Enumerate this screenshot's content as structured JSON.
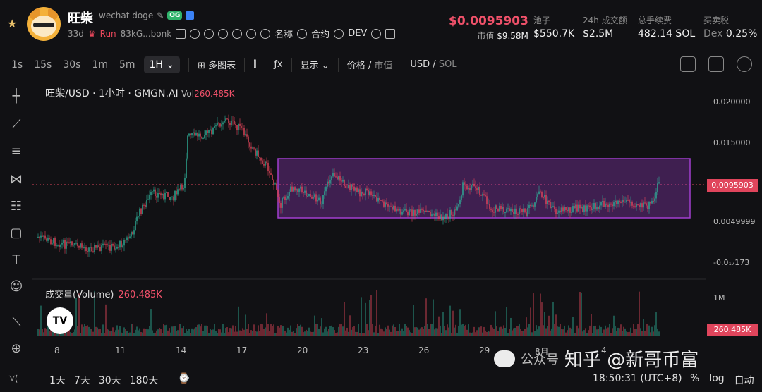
{
  "token": {
    "name": "旺柴",
    "subtitle": "wechat doge",
    "badge": "OG",
    "age": "33d",
    "status": "Run",
    "address": "83kG...bonk"
  },
  "links": [
    "名称",
    "合约",
    "DEV"
  ],
  "price": {
    "value": "$0.0095903",
    "mcap_label": "市值",
    "mcap": "$9.58M"
  },
  "stats": [
    {
      "label": "池子",
      "value": "$550.7K"
    },
    {
      "label": "24h 成交额",
      "value": "$2.5M"
    },
    {
      "label": "总手续费",
      "value": "482.14 SOL"
    },
    {
      "label": "买卖税",
      "value": "Dex",
      "extra": "0.25%"
    }
  ],
  "toolbar": {
    "intervals": [
      "1s",
      "15s",
      "30s",
      "1m",
      "5m"
    ],
    "selected": "1H",
    "multi": "多图表",
    "display": "显示",
    "price": "价格",
    "mcap": "市值",
    "usd": "USD",
    "sol": "SOL"
  },
  "chart": {
    "title": "旺柴/USD · 1小时 · GMGN.AI",
    "vol_label": "Vol",
    "vol": "260.485K",
    "vol_title": "成交量(Volume)",
    "vol_value": "260.485K"
  },
  "yaxis": [
    "0.020000",
    "0.015000",
    "0.0095903",
    "0.0049999",
    "-0.0₁₇173"
  ],
  "vaxis": [
    "1M",
    "260.485K"
  ],
  "xaxis": [
    "8",
    "11",
    "14",
    "17",
    "20",
    "23",
    "26",
    "29",
    "8月",
    "4"
  ],
  "bottom": {
    "ranges": [
      "1天",
      "7天",
      "30天",
      "180天"
    ],
    "time": "18:50:31 (UTC+8)",
    "opts": [
      "%",
      "log",
      "自动"
    ]
  },
  "watermark": {
    "left": "公众号",
    "right": "知乎 @新哥币富"
  },
  "colors": {
    "up": "#2fb39a",
    "down": "#e8475b",
    "rect": "#a23fd0"
  }
}
